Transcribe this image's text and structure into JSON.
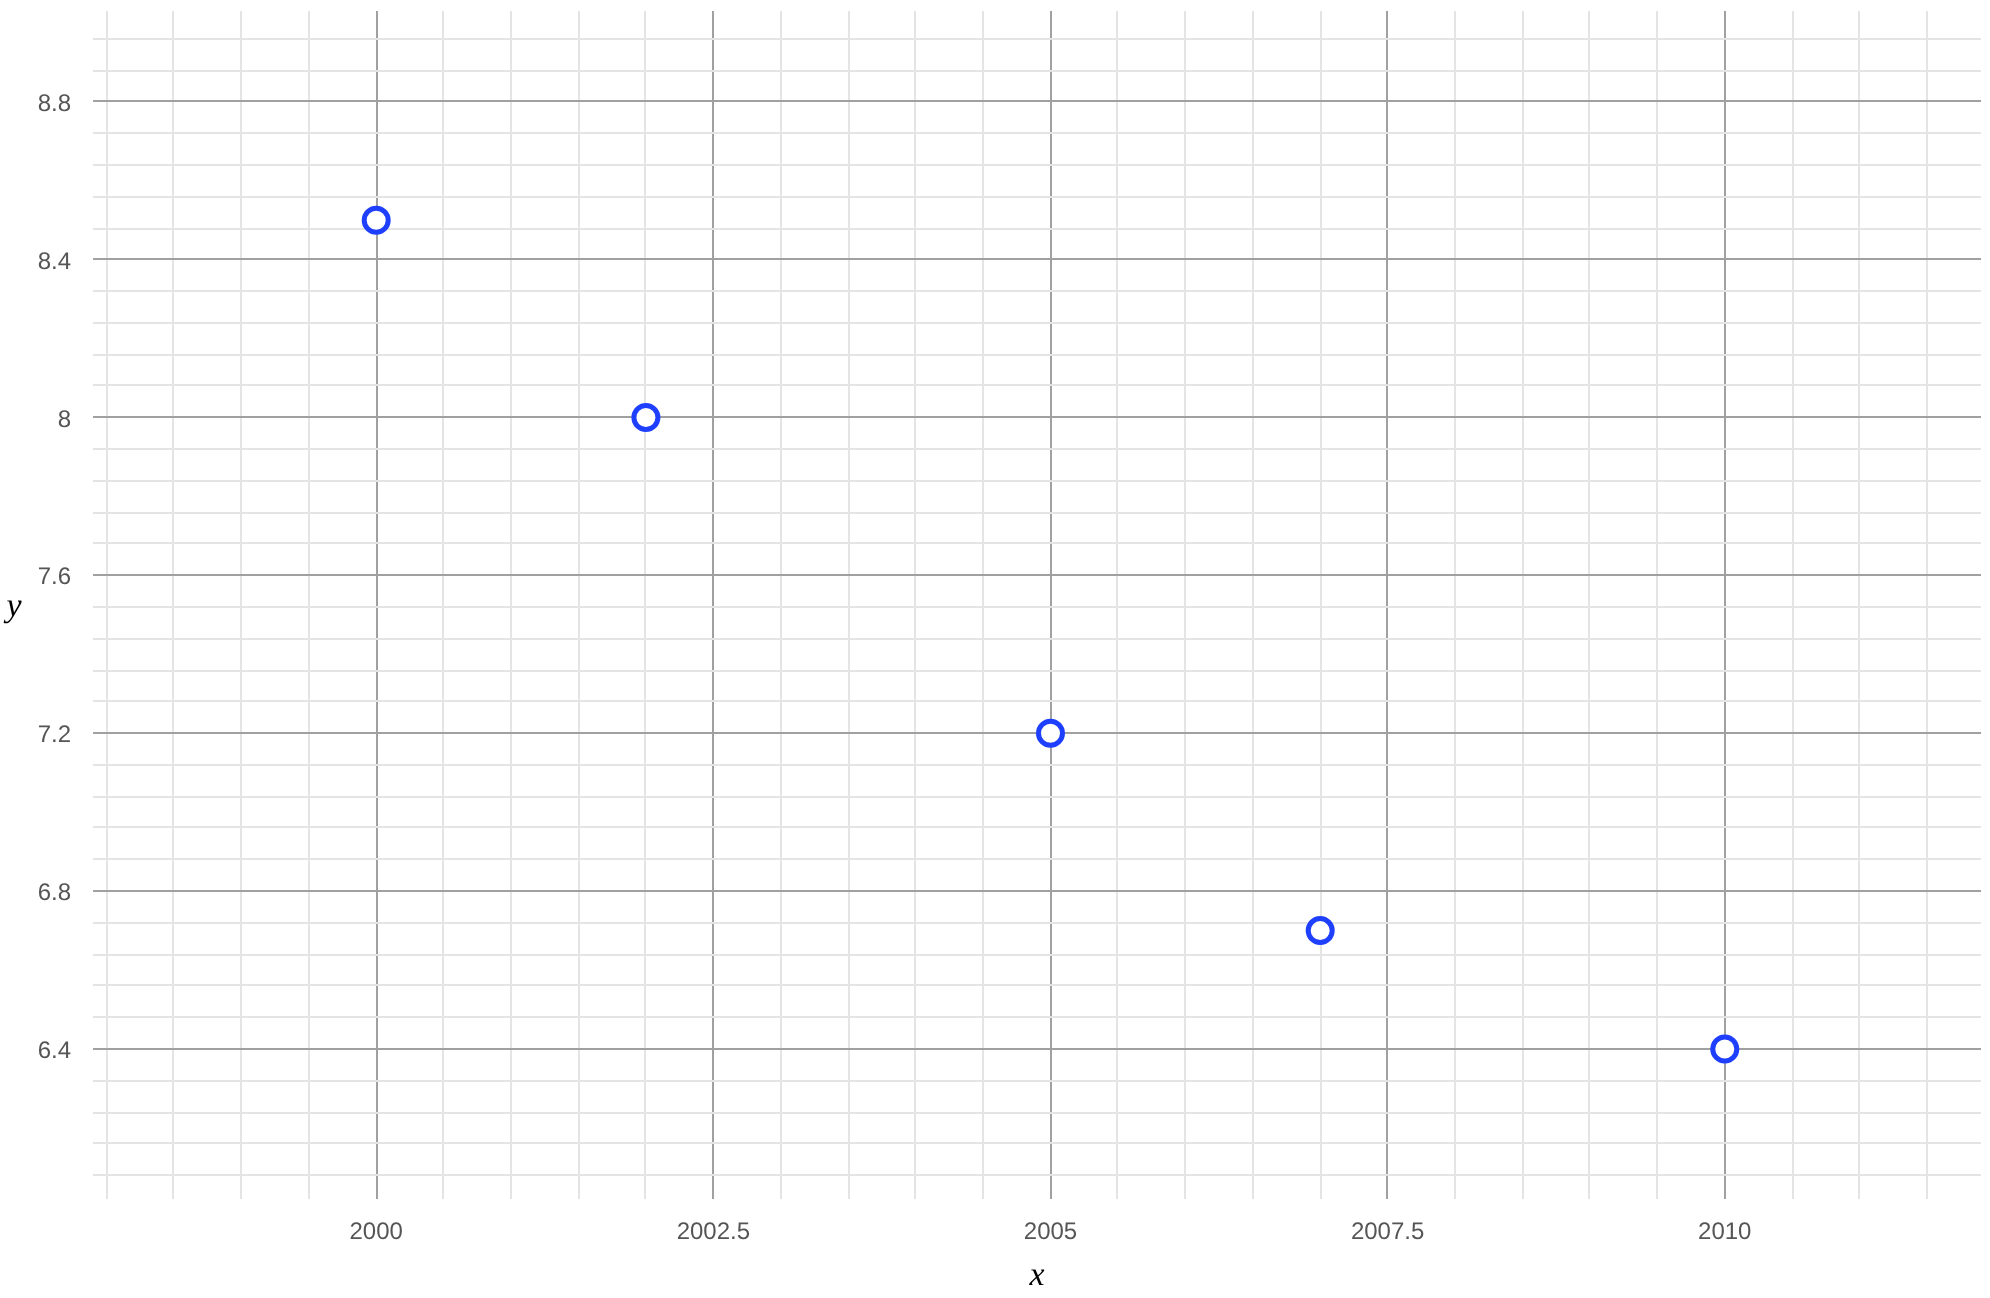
{
  "chart_data": {
    "type": "scatter",
    "xlabel": "x",
    "ylabel": "y",
    "x": [
      2000,
      2002,
      2005,
      2007,
      2010
    ],
    "series": [
      {
        "color": "#1f3fff",
        "values": [
          8.5,
          8.0,
          7.2,
          6.7,
          6.4
        ]
      }
    ],
    "xlim": [
      1997.9,
      2011.9
    ],
    "ylim": [
      6.02,
      9.03
    ],
    "xticks": [
      2000,
      2002.5,
      2005,
      2007.5,
      2010
    ],
    "yticks": [
      6.4,
      6.8,
      7.2,
      7.6,
      8,
      8.4,
      8.8
    ],
    "grid": true,
    "marker": "circle"
  }
}
